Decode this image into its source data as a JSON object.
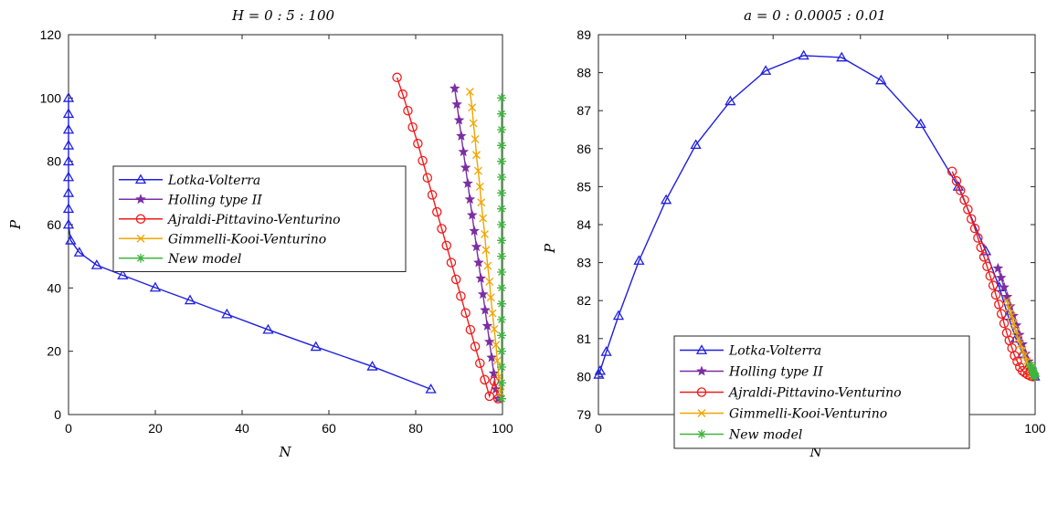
{
  "chart_data": [
    {
      "type": "line",
      "title": "H = 0 : 5 : 100",
      "xlabel": "N",
      "ylabel": "P",
      "xlim": [
        0,
        100
      ],
      "ylim": [
        0,
        120
      ],
      "xticks": [
        0,
        20,
        40,
        60,
        80,
        100
      ],
      "yticks": [
        0,
        20,
        40,
        60,
        80,
        100,
        120
      ],
      "grid": false,
      "legend_position": "center-left",
      "series": [
        {
          "name": "Lotka-Volterra",
          "color": "#1f1fe0",
          "marker": "triangle",
          "x": [
            0,
            0,
            0,
            0,
            0,
            0,
            0,
            0,
            0,
            0.5,
            2.5,
            6.5,
            12.5,
            20,
            28,
            36.5,
            46,
            57,
            70,
            83.5
          ],
          "y": [
            100,
            95,
            90,
            85,
            80,
            75,
            70,
            65,
            60,
            55,
            51.2,
            47.2,
            44,
            40.1,
            36.1,
            31.7,
            26.8,
            21.4,
            15.2,
            8
          ]
        },
        {
          "name": "Holling type II",
          "color": "#7b2fa3",
          "marker": "star",
          "x": [
            89,
            89.5,
            90,
            90.5,
            91,
            91.5,
            92,
            92.5,
            93,
            93.5,
            94,
            94.5,
            95,
            95.5,
            96,
            96.5,
            97,
            97.5,
            98,
            98.5,
            99
          ],
          "y": [
            103,
            98,
            93,
            88,
            83,
            78,
            73,
            68,
            63,
            58,
            53,
            48,
            43,
            38,
            33,
            28,
            23,
            18,
            13,
            8,
            5
          ]
        },
        {
          "name": "Ajraldi-Pittavino-Venturino",
          "color": "#ee1c1c",
          "marker": "circle",
          "x": [
            75.7,
            77,
            78.2,
            79.3,
            80.5,
            81.6,
            82.7,
            83.8,
            84.9,
            86,
            87.1,
            88.2,
            89.3,
            90.4,
            91.5,
            92.6,
            93.7,
            94.8,
            95.9,
            97,
            98.1,
            99
          ],
          "y": [
            106.5,
            101.2,
            96,
            90.8,
            85.6,
            80.2,
            74.8,
            69.4,
            64,
            58.7,
            53.4,
            48,
            42.7,
            37.4,
            32.1,
            26.8,
            21.5,
            16.2,
            11,
            5.8,
            10.5,
            5
          ]
        },
        {
          "name": "Gimmelli-Kooi-Venturino",
          "color": "#f0a500",
          "marker": "x",
          "x": [
            92.5,
            93,
            93.3,
            93.7,
            94,
            94.4,
            94.8,
            95.1,
            95.5,
            95.9,
            96.2,
            96.6,
            97,
            97.3,
            97.7,
            98.1,
            98.5,
            98.8,
            99.2,
            99.6
          ],
          "y": [
            102,
            97,
            92,
            87,
            82,
            77,
            72,
            67,
            62,
            57,
            52,
            47,
            42,
            37,
            32,
            27,
            22,
            17,
            12,
            7
          ]
        },
        {
          "name": "New model",
          "color": "#3fb43f",
          "marker": "asterisk",
          "x": [
            99.8,
            99.8,
            99.8,
            99.8,
            99.8,
            99.8,
            99.8,
            99.8,
            99.8,
            99.8,
            99.8,
            99.8,
            99.8,
            99.8,
            99.8,
            99.8,
            99.8,
            99.8,
            99.8,
            99.8
          ],
          "y": [
            100,
            95,
            90,
            85,
            80,
            75,
            70,
            65,
            60,
            55,
            50,
            45,
            40,
            35,
            30,
            25,
            20,
            15,
            10,
            5
          ]
        }
      ]
    },
    {
      "type": "line",
      "title": "a = 0 : 0.0005 : 0.01",
      "xlabel": "N",
      "ylabel": "P",
      "xlim": [
        0,
        100
      ],
      "ylim": [
        79,
        89
      ],
      "xticks": [
        0,
        20,
        40,
        60,
        80,
        100
      ],
      "yticks": [
        79,
        80,
        81,
        82,
        83,
        84,
        85,
        86,
        87,
        88,
        89
      ],
      "grid": false,
      "legend_position": "bottom-right",
      "series": [
        {
          "name": "Lotka-Volterra",
          "color": "#1f1fe0",
          "marker": "triangle",
          "x": [
            0.1,
            0.4,
            1.8,
            4.6,
            9.3,
            15.5,
            22.3,
            30.2,
            38.3,
            47,
            55.7,
            64.7,
            73.8,
            82.4,
            88.7,
            91.8,
            93.8,
            95.6,
            97.2,
            98.6,
            99.9
          ],
          "y": [
            80.05,
            80.15,
            80.65,
            81.6,
            83.05,
            84.65,
            86.1,
            87.25,
            88.05,
            88.45,
            88.4,
            87.8,
            86.65,
            85,
            83.3,
            82.35,
            81.6,
            81,
            80.6,
            80.3,
            80
          ]
        },
        {
          "name": "Holling type II",
          "color": "#7b2fa3",
          "marker": "star",
          "x": [
            91.5,
            92.2,
            92.9,
            93.6,
            94.3,
            95,
            95.7,
            96.4,
            97.1,
            97.8,
            98.5,
            99.2,
            99.8
          ],
          "y": [
            82.85,
            82.6,
            82.35,
            82.1,
            81.85,
            81.6,
            81.35,
            81.1,
            80.85,
            80.6,
            80.4,
            80.2,
            80.05
          ]
        },
        {
          "name": "Ajraldi-Pittavino-Venturino",
          "color": "#ee1c1c",
          "marker": "circle",
          "x": [
            81,
            82,
            82.9,
            83.8,
            84.6,
            85.4,
            86.2,
            86.9,
            87.6,
            88.3,
            89,
            89.7,
            90.4,
            91,
            91.7,
            92.3,
            92.9,
            93.5,
            94.1,
            94.7,
            95.3,
            95.9,
            96.5,
            97.1,
            97.7,
            98.3,
            98.9,
            99.5
          ],
          "y": [
            85.4,
            85.15,
            84.9,
            84.65,
            84.4,
            84.15,
            83.9,
            83.65,
            83.4,
            83.15,
            82.9,
            82.65,
            82.4,
            82.15,
            81.9,
            81.65,
            81.4,
            81.15,
            80.95,
            80.75,
            80.55,
            80.4,
            80.25,
            80.15,
            80.1,
            80.05,
            80.02,
            80
          ]
        },
        {
          "name": "Gimmelli-Kooi-Venturino",
          "color": "#f0a500",
          "marker": "x",
          "x": [
            93.5,
            94,
            94.6,
            95.1,
            95.6,
            96.1,
            96.6,
            97.1,
            97.6,
            98.1,
            98.5,
            98.9,
            99.3,
            99.7
          ],
          "y": [
            82,
            81.8,
            81.6,
            81.4,
            81.2,
            81,
            80.85,
            80.7,
            80.55,
            80.4,
            80.3,
            80.2,
            80.1,
            80.02
          ]
        },
        {
          "name": "New model",
          "color": "#3fb43f",
          "marker": "asterisk",
          "x": [
            99,
            99.2,
            99.4,
            99.5,
            99.6,
            99.7,
            99.8,
            99.85,
            99.9,
            99.95
          ],
          "y": [
            80.3,
            80.25,
            80.2,
            80.15,
            80.1,
            80.08,
            80.05,
            80.03,
            80.02,
            80
          ]
        }
      ]
    }
  ]
}
